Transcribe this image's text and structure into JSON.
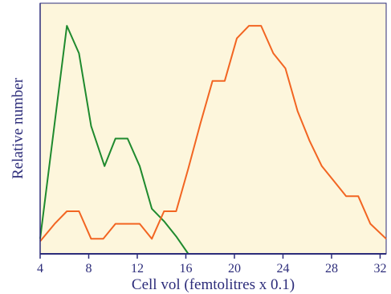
{
  "chart_data": {
    "type": "line",
    "title": "",
    "xlabel": "Cell vol (femtolitres x 0.1)",
    "ylabel": "Relative number",
    "xlim": [
      4,
      32.5
    ],
    "ylim": [
      0,
      100
    ],
    "x_ticks": [
      4,
      8,
      12,
      16,
      20,
      24,
      28,
      32
    ],
    "grid": false,
    "legend": "none",
    "colors": {
      "plot_background": "#fdf6dc",
      "axis": "#2c2c7a",
      "text": "#2c2c7a"
    },
    "series": [
      {
        "color": "#1f8a2e",
        "x": [
          4,
          6.2,
          7.2,
          8.2,
          9.3,
          10.2,
          11.2,
          12.2,
          13.2,
          14.2,
          15.2,
          16.2
        ],
        "y": [
          6,
          91,
          80,
          51,
          35,
          46,
          46,
          35,
          18,
          13,
          7,
          0
        ]
      },
      {
        "color": "#f26522",
        "x": [
          4,
          5.2,
          6.2,
          7.2,
          8.2,
          9.2,
          10.2,
          11.2,
          12.2,
          13.2,
          14.2,
          15.2,
          16.2,
          17.2,
          18.2,
          19.2,
          20.2,
          21.2,
          22.2,
          23.2,
          24.2,
          25.2,
          26.2,
          27.2,
          28.2,
          29.2,
          30.2,
          31.2,
          32.5
        ],
        "y": [
          5,
          12,
          17,
          17,
          6,
          6,
          12,
          12,
          12,
          6,
          17,
          17,
          34,
          52,
          69,
          69,
          86,
          91,
          91,
          80,
          74,
          57,
          45,
          35,
          29,
          23,
          23,
          12,
          6
        ]
      }
    ]
  }
}
